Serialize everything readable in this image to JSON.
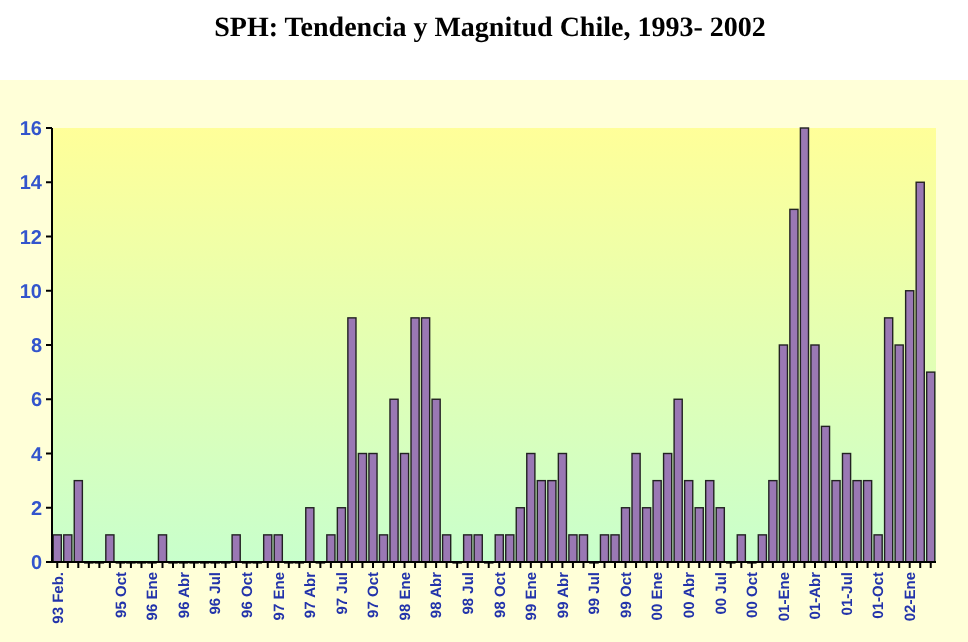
{
  "chart_data": {
    "type": "bar",
    "title": "SPH: Tendencia y Magnitud Chile, 1993- 2002",
    "categories": [
      "93 Feb.",
      null,
      null,
      null,
      null,
      null,
      "95 Oct",
      null,
      null,
      "96 Ene",
      null,
      null,
      "96 Abr",
      null,
      null,
      "96 Jul",
      null,
      null,
      "96 Oct",
      null,
      null,
      "97 Ene",
      null,
      null,
      "97 Abr",
      null,
      null,
      "97 Jul",
      null,
      null,
      "97 Oct",
      null,
      null,
      "98 Ene",
      null,
      null,
      "98 Abr",
      null,
      null,
      "98 Jul",
      null,
      null,
      "98 Oct",
      null,
      null,
      "99 Ene",
      null,
      null,
      "99 Abr",
      null,
      null,
      "99 Jul",
      null,
      null,
      "99 Oct",
      null,
      null,
      "00 Ene",
      null,
      null,
      "00 Abr",
      null,
      null,
      "00 Jul",
      null,
      null,
      "00 Oct",
      null,
      null,
      "01-Ene",
      null,
      null,
      "01-Abr",
      null,
      null,
      "01-Jul",
      null,
      null,
      "01-Oct",
      null,
      null,
      "02-Ene",
      null,
      null
    ],
    "values": [
      1,
      1,
      3,
      0,
      0,
      1,
      0,
      0,
      0,
      0,
      1,
      0,
      0,
      0,
      0,
      0,
      0,
      1,
      0,
      0,
      1,
      1,
      0,
      0,
      2,
      0,
      1,
      2,
      9,
      4,
      4,
      1,
      6,
      4,
      9,
      9,
      6,
      1,
      0,
      1,
      1,
      0,
      1,
      1,
      2,
      4,
      3,
      3,
      4,
      1,
      1,
      0,
      1,
      1,
      2,
      4,
      2,
      3,
      4,
      6,
      3,
      2,
      3,
      2,
      0,
      1,
      0,
      1,
      3,
      8,
      13,
      16,
      8,
      5,
      3,
      4,
      3,
      3,
      1,
      9,
      8,
      10,
      14,
      7
    ],
    "color": "#9a78b4",
    "ylim": [
      0,
      16
    ],
    "yticks": [
      0,
      2,
      4,
      6,
      8,
      10,
      12,
      14,
      16
    ]
  }
}
